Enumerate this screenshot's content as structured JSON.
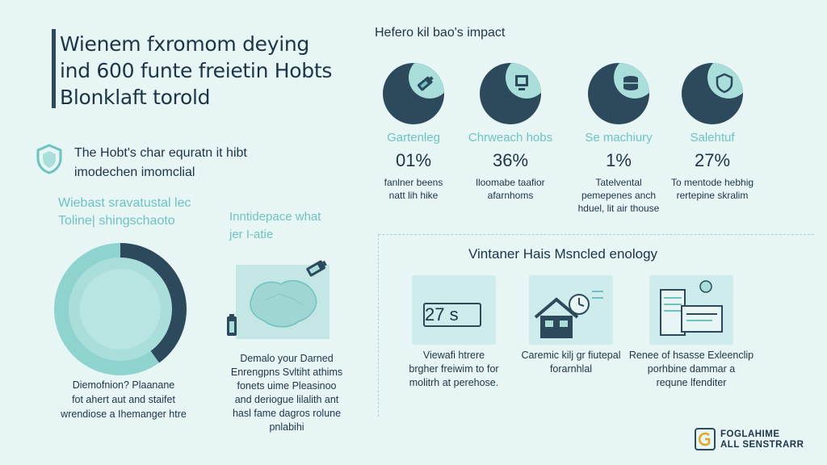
{
  "title": {
    "line1": "Wienem fxromom deying",
    "line2": "ind 600 funte freietin Hobts",
    "line3": "Blonklaft torold"
  },
  "subtitle": {
    "line1": "The Hobt's char equratn it hibt",
    "line2": "imodechen imomclial"
  },
  "left_block": {
    "caption_line1": "Wiebast sravatustal lec",
    "caption_line2": "Toline| shingschaoto",
    "desc_line1": "Diemofnion? Plaanane",
    "desc_line2": "fot ahert aut and staifet",
    "desc_line3": "wrendiose a Ihemanger htre",
    "donut_fraction": 0.4
  },
  "mid_block": {
    "caption_line1": "Inntidepace what",
    "caption_line2": "jer I-atie",
    "desc_line1": "Demalo your Darned",
    "desc_line2": "Enrengpns Svltiht athims",
    "desc_line3": "fonets uime Pleasinoo",
    "desc_line4": "and deriogue lilalith ant",
    "desc_line5": "hasl fame dagros rolune",
    "desc_line6": "pnlabihi"
  },
  "impact": {
    "title": "Hefero kil bao's impact",
    "stats": [
      {
        "label": "Gartenleg",
        "value": "01%",
        "desc1": "fanlner beens",
        "desc2": "natt lih hike",
        "icon": "battery-icon"
      },
      {
        "label": "Chrweach hobs",
        "value": "36%",
        "desc1": "lloomabe taafior",
        "desc2": "afarnhoms",
        "icon": "computer-icon"
      },
      {
        "label": "Se machiury",
        "value": "1%",
        "desc1": "Tatelvental",
        "desc2": "pemepenes anch",
        "desc3": "hduel, lit air thouse",
        "icon": "server-icon"
      },
      {
        "label": "Salehtuf",
        "value": "27%",
        "desc1": "To mentode hebhig",
        "desc2": "rertepine skralim",
        "icon": "shield-icon"
      }
    ]
  },
  "tech": {
    "title": "Vintaner Hais Msncled enology",
    "cards": [
      {
        "card_text": "27 s",
        "desc1": "Viewafi htrere",
        "desc2": "brgher freiwim to for",
        "desc3": "molitrh at perehose."
      },
      {
        "desc1": "Caremic kilj gr fiutepal",
        "desc2": "forarnhlal"
      },
      {
        "desc1": "Renee of hsasse Exleenclip",
        "desc2": "porhbine dammar a",
        "desc3": "requne lfenditer"
      }
    ]
  },
  "logo": {
    "line1": "FOGLAHIME",
    "line2": "ALL SENSTRARR"
  },
  "colors": {
    "background": "#e7f5f4",
    "dark": "#2c4a5c",
    "teal": "#6ec3c0",
    "light_teal": "#a9dedb",
    "card": "#cdeceb"
  }
}
